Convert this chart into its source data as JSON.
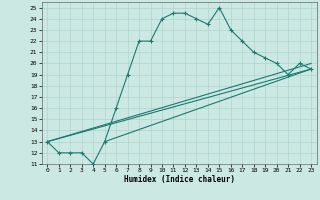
{
  "xlabel": "Humidex (Indice chaleur)",
  "xlim": [
    -0.5,
    23.5
  ],
  "ylim": [
    11,
    25.5
  ],
  "yticks": [
    11,
    12,
    13,
    14,
    15,
    16,
    17,
    18,
    19,
    20,
    21,
    22,
    23,
    24,
    25
  ],
  "xticks": [
    0,
    1,
    2,
    3,
    4,
    5,
    6,
    7,
    8,
    9,
    10,
    11,
    12,
    13,
    14,
    15,
    16,
    17,
    18,
    19,
    20,
    21,
    22,
    23
  ],
  "bg_color": "#cce8e3",
  "line_color": "#1a7a6e",
  "grid_color": "#b8d8d2",
  "line1_x": [
    0,
    1,
    2,
    3,
    4,
    5,
    6,
    7,
    8,
    9,
    10,
    11,
    12,
    13,
    14,
    15,
    16,
    17,
    18,
    19,
    20,
    21,
    22,
    23
  ],
  "line1_y": [
    13,
    12,
    12,
    12,
    11,
    13,
    16,
    19,
    22,
    22,
    24,
    24.5,
    24.5,
    24,
    23.5,
    25,
    23,
    22,
    21,
    20.5,
    20,
    19,
    20,
    19.5
  ],
  "line2_x": [
    0,
    23
  ],
  "line2_y": [
    13,
    19.5
  ],
  "line3_x": [
    0,
    23
  ],
  "line3_y": [
    13,
    20.0
  ],
  "line4_x": [
    5,
    23
  ],
  "line4_y": [
    13,
    19.5
  ]
}
